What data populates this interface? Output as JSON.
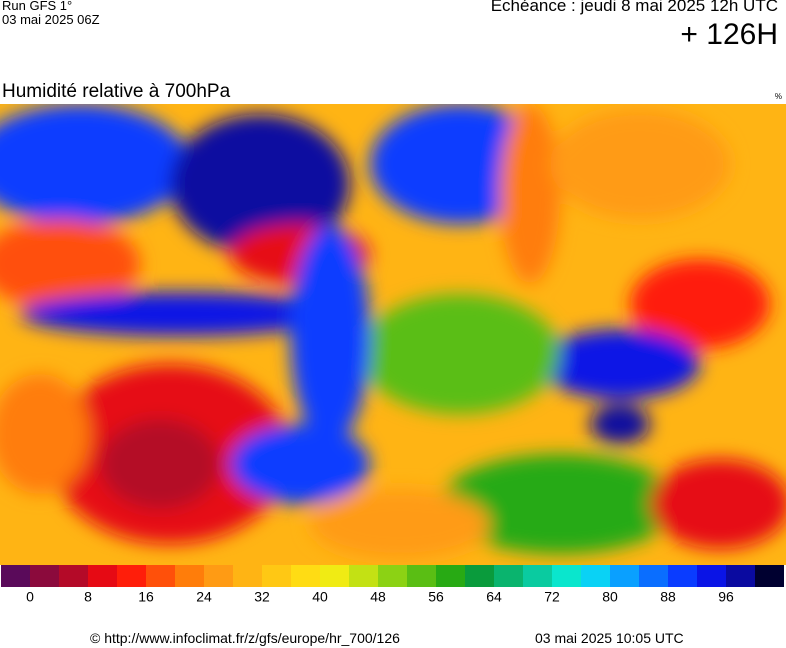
{
  "header": {
    "run": "Run GFS 1°",
    "date": "03 mai 2025 06Z",
    "valid": "Echéance : jeudi 8 mai 2025 12h UTC",
    "lead": "+ 126H"
  },
  "map": {
    "title": "Humidité relative à 700hPa",
    "unit": "%"
  },
  "colorbar": {
    "colors": [
      "#5a0a5a",
      "#8b0a3c",
      "#b40a28",
      "#e60a14",
      "#ff1e0a",
      "#ff500a",
      "#ff7d0a",
      "#ff9b14",
      "#ffb414",
      "#ffc814",
      "#ffdc14",
      "#f0eb14",
      "#c3e114",
      "#8cd214",
      "#5abe14",
      "#28aa14",
      "#0a9b3c",
      "#0ab46e",
      "#0acba0",
      "#0ae6cd",
      "#0ad2f5",
      "#0aa0ff",
      "#0a6eff",
      "#0a3cff",
      "#0a14e6",
      "#0a0aa0",
      "#000030"
    ],
    "labels": [
      0,
      8,
      16,
      24,
      32,
      40,
      48,
      56,
      64,
      72,
      80,
      88,
      96
    ]
  },
  "footer": {
    "url": "© http://www.infoclimat.fr/z/gfs/europe/hr_700/126",
    "generated": "03 mai 2025 10:05 UTC"
  }
}
